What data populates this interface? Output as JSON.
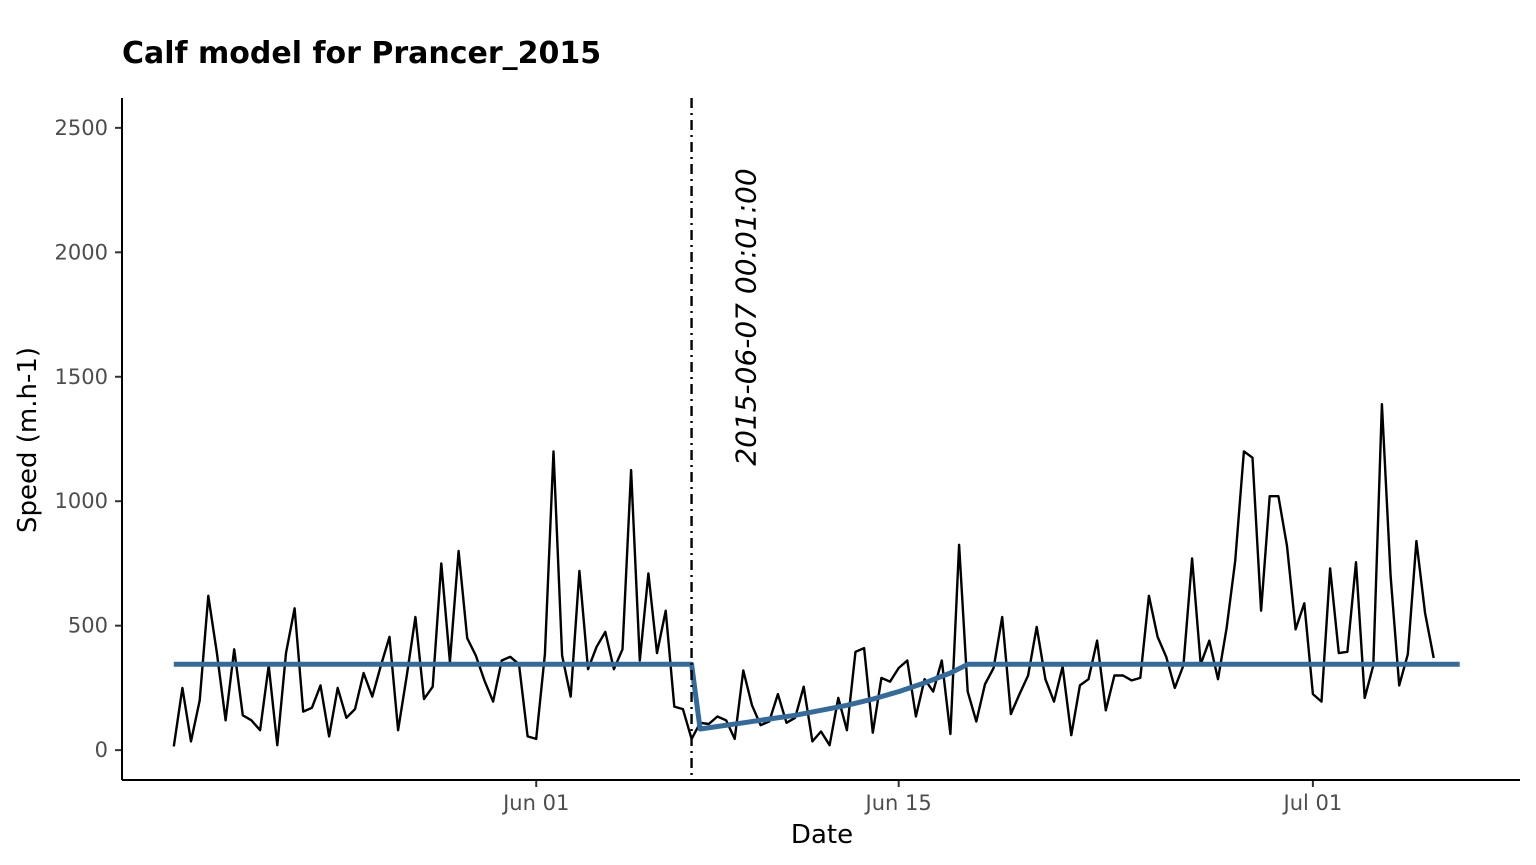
{
  "chart_data": {
    "type": "line",
    "title": "Calf model for Prancer_2015",
    "xlabel": "Date",
    "ylabel": "Speed (m.h-1)",
    "x_range": [
      "2015-05-16",
      "2015-07-09"
    ],
    "ylim": [
      -120,
      2620
    ],
    "y_ticks": [
      0,
      500,
      1000,
      1500,
      2000,
      2500
    ],
    "x_ticks": [
      {
        "date": "2015-06-01",
        "label": "Jun 01"
      },
      {
        "date": "2015-06-15",
        "label": "Jun 15"
      },
      {
        "date": "2015-07-01",
        "label": "Jul 01"
      }
    ],
    "grid": false,
    "legend": "none",
    "calving_date": "2015-06-07",
    "calving_label": "2015-06-07 00:01:00",
    "observed_series": {
      "color": "#000000",
      "start": "2015-05-18",
      "step_days": 0.3333333,
      "values": [
        15,
        250,
        35,
        200,
        620,
        390,
        120,
        405,
        140,
        120,
        80,
        340,
        20,
        390,
        570,
        155,
        170,
        260,
        55,
        250,
        130,
        165,
        310,
        215,
        340,
        455,
        80,
        300,
        535,
        205,
        255,
        750,
        355,
        800,
        450,
        380,
        280,
        195,
        360,
        375,
        345,
        55,
        45,
        385,
        1200,
        380,
        215,
        720,
        325,
        415,
        475,
        325,
        405,
        1125,
        360,
        710,
        390,
        560,
        175,
        165,
        45,
        110,
        105,
        135,
        120,
        45,
        320,
        180,
        100,
        115,
        225,
        110,
        130,
        255,
        35,
        75,
        20,
        210,
        80,
        395,
        410,
        70,
        290,
        275,
        330,
        360,
        135,
        285,
        235,
        360,
        65,
        825,
        235,
        115,
        265,
        330,
        535,
        145,
        225,
        300,
        495,
        285,
        195,
        335,
        60,
        260,
        285,
        440,
        160,
        300,
        300,
        280,
        290,
        620,
        455,
        375,
        250,
        340,
        770,
        345,
        440,
        285,
        490,
        760,
        1200,
        1175,
        560,
        1020,
        1020,
        820,
        485,
        590,
        225,
        195,
        730,
        390,
        395,
        755,
        210,
        340,
        1390,
        700,
        260,
        385,
        840,
        550,
        370
      ]
    },
    "model_series": {
      "color": "#336b9c",
      "points": [
        [
          "2015-05-18",
          345
        ],
        [
          "2015-06-07",
          345
        ],
        [
          "2015-06-07.33",
          85
        ],
        [
          "2015-06-08",
          95
        ],
        [
          "2015-06-09",
          110
        ],
        [
          "2015-06-10",
          125
        ],
        [
          "2015-06-11",
          140
        ],
        [
          "2015-06-12",
          160
        ],
        [
          "2015-06-13",
          180
        ],
        [
          "2015-06-14",
          205
        ],
        [
          "2015-06-15",
          235
        ],
        [
          "2015-06-16",
          270
        ],
        [
          "2015-06-17",
          310
        ],
        [
          "2015-06-17.67",
          345
        ],
        [
          "2015-07-06.67",
          345
        ]
      ]
    }
  }
}
